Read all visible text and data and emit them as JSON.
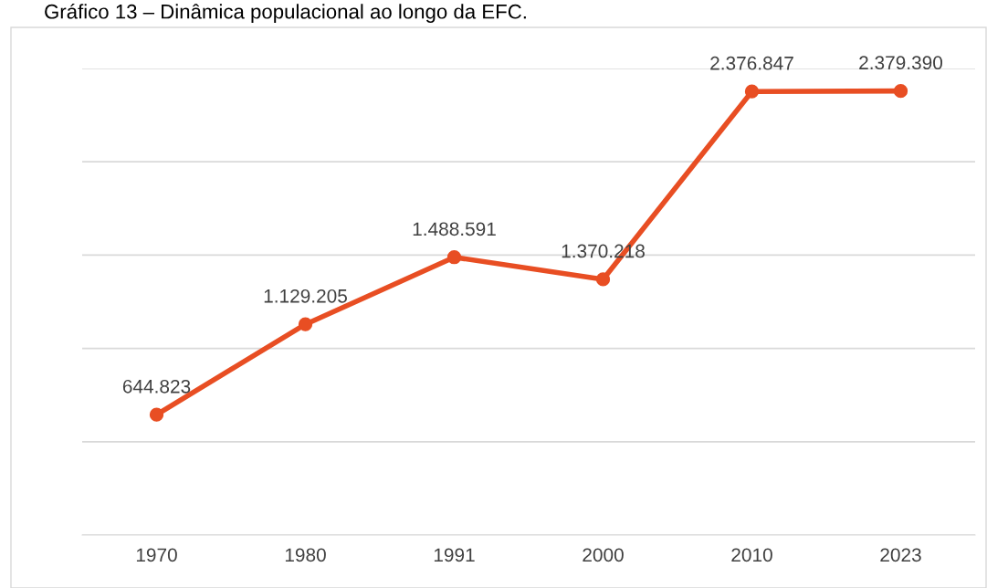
{
  "chart_data": {
    "type": "line",
    "title": "Gráfico 13 – Dinâmica populacional ao longo da EFC.",
    "categories": [
      "1970",
      "1980",
      "1991",
      "2000",
      "2010",
      "2023"
    ],
    "series": [
      {
        "color": "#e84e23",
        "values": [
          644823,
          1129205,
          1488591,
          1370218,
          2376847,
          2379390
        ],
        "value_labels": [
          "644.823",
          "1.129.205",
          "1.488.591",
          "1.370.218",
          "2.376.847",
          "2.379.390"
        ]
      }
    ],
    "ylim": [
      0,
      2500000
    ],
    "yticks": [
      {
        "value": 0,
        "label": null
      },
      {
        "value": 500000,
        "label": null
      },
      {
        "value": 1000000,
        "label": null
      },
      {
        "value": 1500000,
        "label": null
      },
      {
        "value": 2000000,
        "label": null
      },
      {
        "value": 2500000,
        "label": null
      }
    ],
    "tick_labels": "x",
    "grid": "y",
    "marker": "circle",
    "line_style": "solid",
    "legend": false
  }
}
